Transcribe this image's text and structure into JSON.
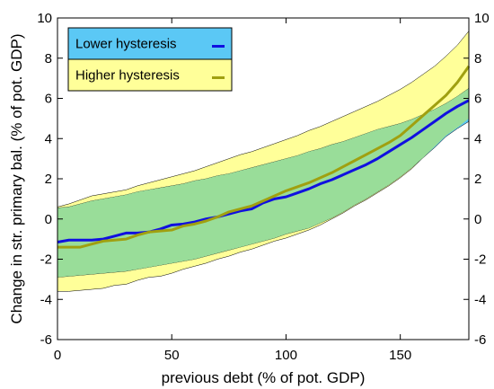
{
  "chart_data": {
    "type": "line",
    "xlabel": "previous debt (% of pot. GDP)",
    "ylabel": "Change in str. primary bal. (% of pot. GDP)",
    "xlim": [
      0,
      180
    ],
    "ylim": [
      -6,
      10
    ],
    "xticks": [
      0,
      50,
      100,
      150
    ],
    "yticks": [
      -6,
      -4,
      -2,
      0,
      2,
      4,
      6,
      8,
      10
    ],
    "right_axis_ticks": true,
    "grid": false,
    "legend_position": "top-left",
    "series": [
      {
        "name": "Lower hysteresis",
        "color": "#1010e0",
        "band_color": "#5bc8f5",
        "x": [
          0,
          5,
          10,
          15,
          20,
          25,
          30,
          35,
          40,
          45,
          50,
          55,
          60,
          65,
          70,
          75,
          80,
          85,
          90,
          95,
          100,
          105,
          110,
          115,
          120,
          125,
          130,
          135,
          140,
          145,
          150,
          155,
          160,
          165,
          170,
          175,
          180
        ],
        "values": [
          -1.15,
          -1.05,
          -1.05,
          -1.05,
          -1.0,
          -0.85,
          -0.7,
          -0.7,
          -0.65,
          -0.5,
          -0.3,
          -0.25,
          -0.15,
          0.0,
          0.1,
          0.25,
          0.4,
          0.5,
          0.8,
          1.0,
          1.1,
          1.3,
          1.5,
          1.75,
          1.95,
          2.2,
          2.45,
          2.7,
          3.0,
          3.35,
          3.7,
          4.05,
          4.45,
          4.85,
          5.25,
          5.6,
          5.9
        ],
        "band_upper": [
          0.55,
          0.6,
          0.75,
          0.9,
          1.0,
          1.1,
          1.2,
          1.35,
          1.45,
          1.55,
          1.65,
          1.75,
          1.9,
          2.0,
          2.15,
          2.25,
          2.4,
          2.55,
          2.7,
          2.85,
          3.0,
          3.15,
          3.35,
          3.5,
          3.7,
          3.85,
          4.05,
          4.25,
          4.45,
          4.6,
          4.75,
          4.95,
          5.2,
          5.45,
          5.75,
          6.1,
          6.5
        ],
        "band_lower": [
          -2.9,
          -2.85,
          -2.8,
          -2.75,
          -2.7,
          -2.65,
          -2.6,
          -2.5,
          -2.4,
          -2.3,
          -2.2,
          -2.1,
          -2.0,
          -1.85,
          -1.7,
          -1.55,
          -1.4,
          -1.25,
          -1.1,
          -0.95,
          -0.75,
          -0.6,
          -0.45,
          -0.2,
          0.05,
          0.35,
          0.7,
          1.0,
          1.35,
          1.7,
          2.1,
          2.55,
          3.05,
          3.55,
          4.1,
          4.5,
          4.85
        ]
      },
      {
        "name": "Higher hysteresis",
        "color": "#a0a010",
        "band_color": "#ffff99",
        "x": [
          0,
          5,
          10,
          15,
          20,
          25,
          30,
          35,
          40,
          45,
          50,
          55,
          60,
          65,
          70,
          75,
          80,
          85,
          90,
          95,
          100,
          105,
          110,
          115,
          120,
          125,
          130,
          135,
          140,
          145,
          150,
          155,
          160,
          165,
          170,
          175,
          180
        ],
        "values": [
          -1.4,
          -1.4,
          -1.4,
          -1.25,
          -1.1,
          -1.05,
          -1.0,
          -0.8,
          -0.65,
          -0.6,
          -0.55,
          -0.35,
          -0.25,
          -0.1,
          0.1,
          0.35,
          0.5,
          0.65,
          0.9,
          1.15,
          1.4,
          1.6,
          1.8,
          2.05,
          2.3,
          2.6,
          2.9,
          3.2,
          3.5,
          3.8,
          4.15,
          4.65,
          5.15,
          5.65,
          6.15,
          6.8,
          7.6
        ],
        "band_upper": [
          0.6,
          0.75,
          0.95,
          1.15,
          1.25,
          1.35,
          1.45,
          1.65,
          1.8,
          1.95,
          2.1,
          2.25,
          2.4,
          2.6,
          2.8,
          3.0,
          3.2,
          3.35,
          3.55,
          3.75,
          3.95,
          4.15,
          4.4,
          4.6,
          4.85,
          5.1,
          5.35,
          5.6,
          5.85,
          6.15,
          6.45,
          6.8,
          7.2,
          7.6,
          8.1,
          8.65,
          9.35
        ],
        "band_lower": [
          -3.6,
          -3.6,
          -3.55,
          -3.5,
          -3.45,
          -3.3,
          -3.25,
          -3.05,
          -2.9,
          -2.85,
          -2.7,
          -2.5,
          -2.35,
          -2.2,
          -2.0,
          -1.85,
          -1.65,
          -1.5,
          -1.3,
          -1.1,
          -0.95,
          -0.75,
          -0.55,
          -0.3,
          0.0,
          0.3,
          0.65,
          0.95,
          1.3,
          1.65,
          2.05,
          2.5,
          3.05,
          3.6,
          4.15,
          4.55,
          5.0
        ]
      }
    ]
  }
}
